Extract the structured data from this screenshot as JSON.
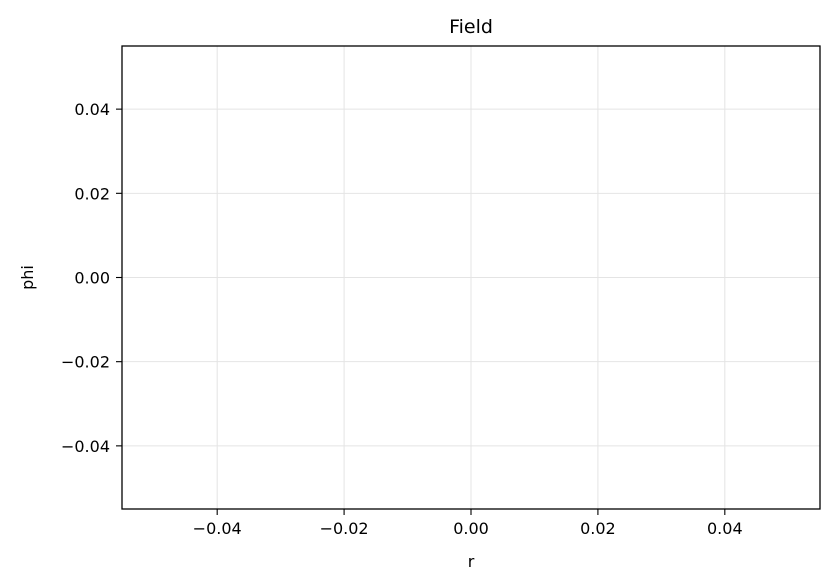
{
  "chart_data": {
    "type": "line",
    "title": "Field",
    "xlabel": "r",
    "ylabel": "phi",
    "xlim": [
      -0.055,
      0.055
    ],
    "ylim": [
      -0.055,
      0.055
    ],
    "xticks": [
      -0.04,
      -0.02,
      0.0,
      0.02,
      0.04
    ],
    "yticks": [
      -0.04,
      -0.02,
      0.0,
      0.02,
      0.04
    ],
    "xtick_labels": [
      "−0.04",
      "−0.02",
      "0.00",
      "0.02",
      "0.04"
    ],
    "ytick_labels": [
      "−0.04",
      "−0.02",
      "0.00",
      "0.02",
      "0.04"
    ],
    "grid": true,
    "series": [],
    "colors": {
      "grid": "#e4e4e4",
      "axes": "#000000",
      "background": "#ffffff"
    }
  }
}
